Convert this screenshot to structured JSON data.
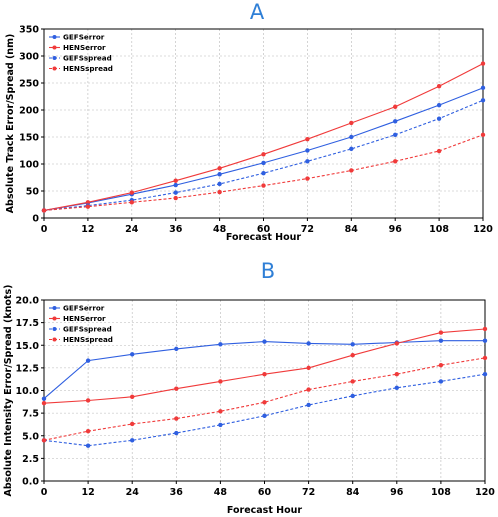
{
  "colors": {
    "blue": "#2f5fe0",
    "red": "#f03a3a",
    "panel_title": "#2f7fd6",
    "grid": "#b8b8b8"
  },
  "chart_data": [
    {
      "panel": "A",
      "type": "line",
      "title": "A",
      "xlabel": "Forecast Hour",
      "ylabel": "Absolute Track Error/Spread (nm)",
      "x": [
        0,
        12,
        24,
        36,
        48,
        60,
        72,
        84,
        96,
        108,
        120
      ],
      "xlim": [
        0,
        120
      ],
      "ylim": [
        0,
        350
      ],
      "yticks": [
        0,
        50,
        100,
        150,
        200,
        250,
        300,
        350
      ],
      "ytick_labels": [
        "0",
        "50",
        "100",
        "150",
        "200",
        "250",
        "300",
        "350"
      ],
      "grid": true,
      "legend_position": "top-left",
      "series": [
        {
          "name": "GEFSerror",
          "color": "blue",
          "dashed": false,
          "values": [
            14,
            28,
            44,
            61,
            81,
            102,
            125,
            150,
            179,
            209,
            241
          ]
        },
        {
          "name": "HENSerror",
          "color": "red",
          "dashed": false,
          "values": [
            14,
            29,
            47,
            69,
            92,
            118,
            146,
            176,
            206,
            244,
            286
          ]
        },
        {
          "name": "GEFSspread",
          "color": "blue",
          "dashed": true,
          "values": [
            14,
            23,
            33,
            47,
            63,
            83,
            105,
            128,
            154,
            184,
            218
          ]
        },
        {
          "name": "HENSspread",
          "color": "red",
          "dashed": true,
          "values": [
            14,
            21,
            29,
            37,
            48,
            60,
            73,
            88,
            105,
            124,
            154
          ]
        }
      ]
    },
    {
      "panel": "B",
      "type": "line",
      "title": "B",
      "xlabel": "Forecast Hour",
      "ylabel": "Absolute Intensity Error/Spread (knots)",
      "x": [
        0,
        12,
        24,
        36,
        48,
        60,
        72,
        84,
        96,
        108,
        120
      ],
      "xlim": [
        0,
        120
      ],
      "ylim": [
        0,
        20
      ],
      "yticks": [
        0,
        2.5,
        5,
        7.5,
        10,
        12.5,
        15,
        17.5,
        20
      ],
      "ytick_labels": [
        "0.0",
        "2.5",
        "5.0",
        "7.5",
        "10.0",
        "12.5",
        "15.0",
        "17.5",
        "20.0"
      ],
      "grid": true,
      "legend_position": "top-left",
      "series": [
        {
          "name": "GEFSerror",
          "color": "blue",
          "dashed": false,
          "values": [
            9.1,
            13.3,
            14.0,
            14.6,
            15.1,
            15.4,
            15.2,
            15.1,
            15.3,
            15.5,
            15.5
          ]
        },
        {
          "name": "HENSerror",
          "color": "red",
          "dashed": false,
          "values": [
            8.6,
            8.9,
            9.3,
            10.2,
            11.0,
            11.8,
            12.5,
            13.9,
            15.2,
            16.4,
            16.8
          ]
        },
        {
          "name": "GEFSspread",
          "color": "blue",
          "dashed": true,
          "values": [
            4.5,
            3.9,
            4.5,
            5.3,
            6.2,
            7.2,
            8.4,
            9.4,
            10.3,
            11.0,
            11.8
          ]
        },
        {
          "name": "HENSspread",
          "color": "red",
          "dashed": true,
          "values": [
            4.5,
            5.5,
            6.3,
            6.9,
            7.7,
            8.7,
            10.1,
            11.0,
            11.8,
            12.8,
            13.6
          ]
        }
      ]
    }
  ]
}
